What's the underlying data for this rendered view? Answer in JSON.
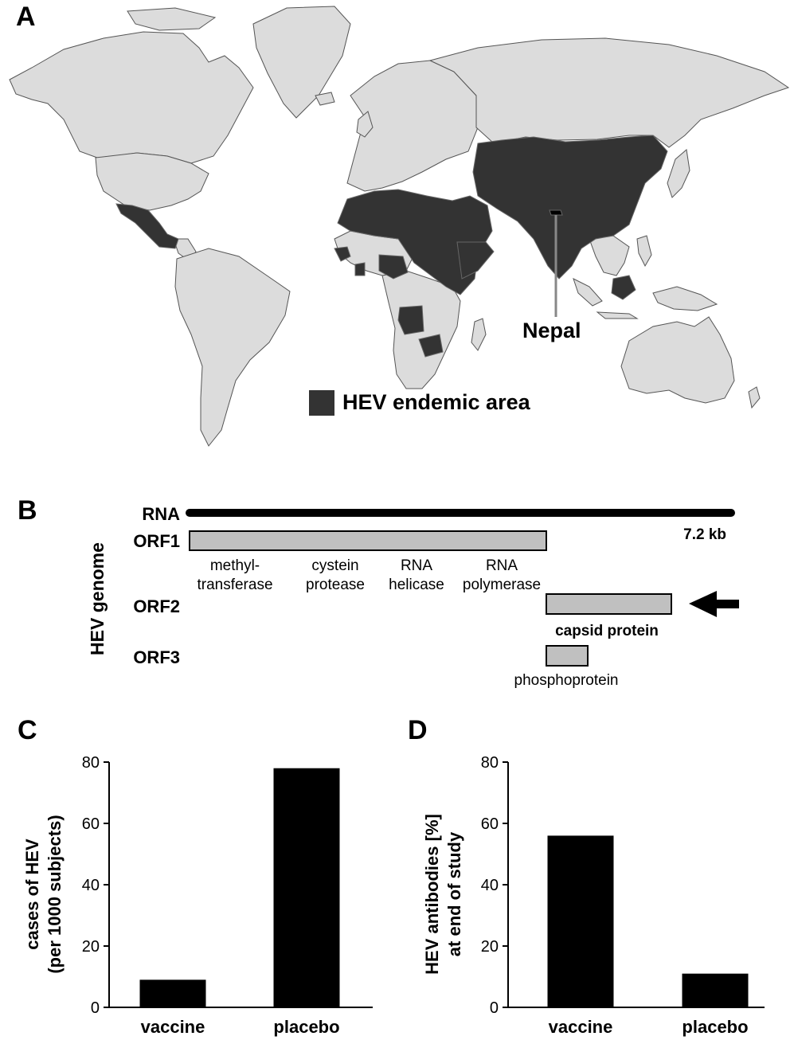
{
  "panels": {
    "a": "A",
    "b": "B",
    "c": "C",
    "d": "D"
  },
  "map": {
    "callout_label": "Nepal",
    "legend_label": "HEV endemic area",
    "colors": {
      "endemic": "#333333",
      "non_endemic": "#dcdcdc",
      "border": "#555555"
    }
  },
  "genome": {
    "axis_label": "HEV genome",
    "rna_label": "RNA",
    "length_label": "7.2 kb",
    "orfs": [
      {
        "label": "ORF1",
        "domains": [
          [
            "methyl-",
            "transferase"
          ],
          [
            "cystein",
            "protease"
          ],
          [
            "RNA",
            "helicase"
          ],
          [
            "RNA",
            "polymerase"
          ]
        ]
      },
      {
        "label": "ORF2",
        "product": "capsid protein",
        "product_bold": true,
        "arrow": "left-pointing-arrow"
      },
      {
        "label": "ORF3",
        "product": "phosphoprotein",
        "product_bold": false
      }
    ],
    "colors": {
      "box_fill": "#c0c0c0",
      "rna": "#000000"
    }
  },
  "chart_data": [
    {
      "type": "bar",
      "panel": "C",
      "categories": [
        "vaccine",
        "placebo"
      ],
      "values": [
        9,
        78
      ],
      "ylabel": [
        "cases of HEV",
        "(per 1000 subjects)"
      ],
      "ylim": [
        0,
        80
      ],
      "yticks": [
        0,
        20,
        40,
        60,
        80
      ],
      "bar_color": "#000000"
    },
    {
      "type": "bar",
      "panel": "D",
      "categories": [
        "vaccine",
        "placebo"
      ],
      "values": [
        56,
        11
      ],
      "ylabel": [
        "HEV antibodies [%]",
        "at end of study"
      ],
      "ylim": [
        0,
        80
      ],
      "yticks": [
        0,
        20,
        40,
        60,
        80
      ],
      "bar_color": "#000000"
    }
  ]
}
